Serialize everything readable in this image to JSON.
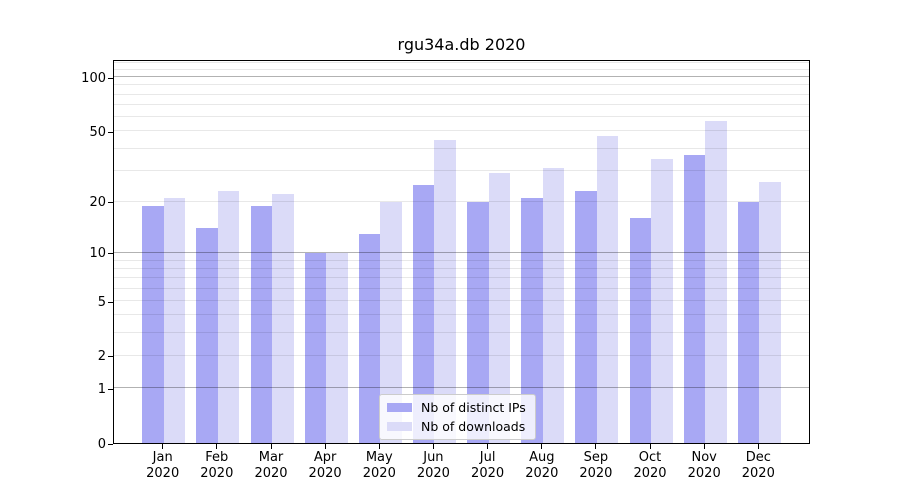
{
  "title": "rgu34a.db 2020",
  "colors": {
    "distinct_ips": "#a8a8f4",
    "downloads": "#dbdbf8",
    "major_grid": "rgba(0,0,0,0.30)",
    "minor_grid": "rgba(0,0,0,0.09)",
    "axis": "#000000",
    "legend_border": "#cccccc"
  },
  "legend": {
    "items": [
      {
        "key": "distinct-ips",
        "label": "Nb of distinct IPs"
      },
      {
        "key": "downloads",
        "label": "Nb of downloads"
      }
    ]
  },
  "chart_data": {
    "type": "bar",
    "title": "rgu34a.db 2020",
    "categories": [
      "Jan 2020",
      "Feb 2020",
      "Mar 2020",
      "Apr 2020",
      "May 2020",
      "Jun 2020",
      "Jul 2020",
      "Aug 2020",
      "Sep 2020",
      "Oct 2020",
      "Nov 2020",
      "Dec 2020"
    ],
    "series": [
      {
        "name": "Nb of distinct IPs",
        "values": [
          19,
          14,
          19,
          10,
          13,
          25,
          20,
          21,
          23,
          16,
          37,
          20
        ]
      },
      {
        "name": "Nb of downloads",
        "values": [
          21,
          23,
          22,
          10,
          20,
          45,
          29,
          31,
          47,
          35,
          57,
          26
        ]
      }
    ],
    "xlabel": "",
    "ylabel": "",
    "yscale": "log1p",
    "yticks": [
      0,
      1,
      2,
      5,
      10,
      20,
      50,
      100
    ],
    "minor_grid_values": [
      2,
      3,
      4,
      5,
      6,
      7,
      8,
      9,
      20,
      30,
      40,
      50,
      60,
      70,
      80,
      90,
      110,
      120
    ],
    "major_grid_values": [
      1,
      10,
      100
    ],
    "ylim": [
      0,
      126
    ],
    "grid": true,
    "legend_position": "lower center"
  }
}
